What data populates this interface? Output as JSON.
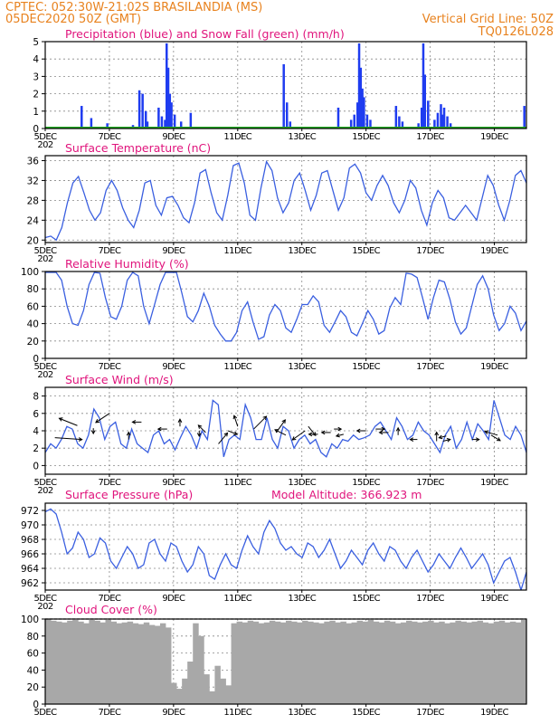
{
  "header": {
    "line1": "CPTEC:   052:30W-21:02S   BRASILANDIA (MS)",
    "line2": "05DEC2020 50Z (GMT)",
    "grid_note": "Vertical Grid Line: 50Z",
    "code": "TQ0126L028"
  },
  "x_axis": {
    "ticks": [
      "5DEC",
      "7DEC",
      "9DEC",
      "11DEC",
      "13DEC",
      "15DEC",
      "17DEC",
      "19DEC"
    ],
    "tick_days": [
      0,
      2,
      4,
      6,
      8,
      10,
      12,
      14
    ],
    "range_days": [
      0,
      15
    ],
    "cut_label": "202"
  },
  "colors": {
    "line": "#3a5fe0",
    "bar": "#1f3cf0",
    "snow": "#22aa22",
    "cloud": "#a8a8a8",
    "header": "#e8821e",
    "title": "#e0147c"
  },
  "chart_data": [
    {
      "id": "precip",
      "type": "bar",
      "title": "Precipitation (blue) and Snow Fall (green) (mm/h)",
      "ylim": [
        0,
        5
      ],
      "yticks": [
        0,
        1,
        2,
        3,
        4,
        5
      ],
      "bars": [
        [
          1.1,
          1.3
        ],
        [
          1.4,
          0.6
        ],
        [
          1.9,
          0.3
        ],
        [
          2.7,
          0.2
        ],
        [
          2.9,
          2.2
        ],
        [
          3.0,
          2.0
        ],
        [
          3.1,
          1.0
        ],
        [
          3.15,
          0.4
        ],
        [
          3.5,
          1.2
        ],
        [
          3.6,
          0.7
        ],
        [
          3.7,
          0.5
        ],
        [
          3.75,
          4.9
        ],
        [
          3.8,
          3.5
        ],
        [
          3.85,
          2.0
        ],
        [
          3.9,
          1.5
        ],
        [
          4.0,
          0.8
        ],
        [
          4.2,
          0.4
        ],
        [
          4.5,
          0.9
        ],
        [
          7.4,
          3.7
        ],
        [
          7.5,
          1.5
        ],
        [
          7.6,
          0.4
        ],
        [
          9.1,
          1.2
        ],
        [
          9.5,
          0.5
        ],
        [
          9.6,
          0.8
        ],
        [
          9.7,
          1.5
        ],
        [
          9.75,
          4.9
        ],
        [
          9.8,
          3.5
        ],
        [
          9.85,
          2.3
        ],
        [
          9.9,
          1.8
        ],
        [
          10.0,
          0.8
        ],
        [
          10.1,
          0.5
        ],
        [
          10.9,
          1.3
        ],
        [
          11.0,
          0.7
        ],
        [
          11.1,
          0.4
        ],
        [
          11.6,
          0.3
        ],
        [
          11.7,
          1.2
        ],
        [
          11.75,
          4.9
        ],
        [
          11.8,
          3.1
        ],
        [
          11.9,
          1.6
        ],
        [
          12.1,
          0.5
        ],
        [
          12.2,
          0.9
        ],
        [
          12.3,
          1.4
        ],
        [
          12.35,
          0.8
        ],
        [
          12.4,
          1.2
        ],
        [
          12.5,
          0.7
        ],
        [
          12.6,
          0.3
        ],
        [
          14.9,
          1.3
        ]
      ]
    },
    {
      "id": "temp",
      "type": "line",
      "title": "Surface Temperature (nC)",
      "ylim": [
        19.5,
        37
      ],
      "yticks": [
        20,
        24,
        28,
        32,
        36
      ],
      "values": [
        20.5,
        20.8,
        20.0,
        22.5,
        27.5,
        31.5,
        32.8,
        29.5,
        26.0,
        24.0,
        25.5,
        30.0,
        32.0,
        30.0,
        26.5,
        24.0,
        22.5,
        26.0,
        31.5,
        32.0,
        27.0,
        25.0,
        28.5,
        28.8,
        27.0,
        24.5,
        23.5,
        27.5,
        33.5,
        34.2,
        29.5,
        25.5,
        24.0,
        29.0,
        35.0,
        35.5,
        31.5,
        25.0,
        24.0,
        30.5,
        35.8,
        34.0,
        28.5,
        25.5,
        27.5,
        32.0,
        33.5,
        30.0,
        26.0,
        29.0,
        33.5,
        34.0,
        30.0,
        26.0,
        28.5,
        34.5,
        35.3,
        33.5,
        29.5,
        28.0,
        31.0,
        33.0,
        31.0,
        27.5,
        25.5,
        28.0,
        32.0,
        30.5,
        26.0,
        23.0,
        27.5,
        30.0,
        28.5,
        24.5,
        24.0,
        25.5,
        27.0,
        25.5,
        24.0,
        28.5,
        33.0,
        31.0,
        27.0,
        24.0,
        28.0,
        33.0,
        34.0,
        31.5
      ]
    },
    {
      "id": "rh",
      "type": "line",
      "title": "Relative Humidity (%)",
      "ylim": [
        0,
        100
      ],
      "yticks": [
        0,
        20,
        40,
        60,
        80,
        100
      ],
      "values": [
        99,
        99,
        99,
        90,
        60,
        40,
        38,
        55,
        85,
        99,
        98,
        70,
        48,
        45,
        60,
        90,
        99,
        95,
        60,
        40,
        62,
        85,
        99,
        99,
        99,
        75,
        48,
        42,
        55,
        75,
        60,
        38,
        28,
        20,
        20,
        30,
        55,
        65,
        42,
        22,
        25,
        50,
        62,
        55,
        35,
        30,
        45,
        62,
        62,
        72,
        65,
        38,
        30,
        42,
        55,
        48,
        30,
        26,
        40,
        55,
        45,
        28,
        32,
        58,
        70,
        62,
        98,
        97,
        93,
        70,
        45,
        70,
        90,
        88,
        68,
        42,
        28,
        35,
        60,
        85,
        95,
        80,
        50,
        32,
        40,
        60,
        52,
        32,
        43
      ]
    },
    {
      "id": "wind",
      "type": "line",
      "title": "Surface Wind (m/s)",
      "ylim": [
        -1,
        9
      ],
      "yticks": [
        0,
        2,
        4,
        6,
        8
      ],
      "values": [
        1.5,
        2.5,
        2.0,
        3.0,
        4.5,
        4.2,
        2.5,
        2.0,
        3.5,
        6.5,
        5.5,
        3.0,
        4.5,
        5.0,
        2.5,
        2.0,
        4.2,
        2.5,
        2.0,
        1.5,
        3.5,
        4.0,
        2.5,
        3.0,
        1.8,
        3.2,
        4.5,
        3.5,
        2.0,
        4.0,
        3.0,
        7.5,
        7.0,
        1.0,
        3.0,
        3.5,
        3.0,
        7.0,
        5.5,
        3.0,
        3.0,
        5.5,
        3.0,
        2.0,
        4.5,
        4.0,
        2.0,
        3.0,
        3.5,
        2.5,
        3.0,
        1.5,
        1.0,
        2.5,
        2.0,
        3.0,
        2.8,
        3.5,
        3.0,
        3.2,
        3.5,
        4.5,
        5.0,
        4.0,
        3.0,
        5.5,
        4.5,
        3.0,
        3.5,
        5.0,
        4.0,
        3.5,
        2.5,
        1.5,
        3.5,
        4.5,
        2.0,
        3.0,
        5.0,
        3.0,
        4.8,
        4.0,
        3.0,
        7.5,
        5.5,
        3.5,
        3.0,
        4.5,
        3.5,
        1.5
      ],
      "vectors": [
        [
          0.3,
          3.2,
          30,
          2
        ],
        [
          1.0,
          4.6,
          -20,
          -8
        ],
        [
          1.5,
          4.3,
          0,
          6
        ],
        [
          2.0,
          6.0,
          -15,
          10
        ],
        [
          2.6,
          3.0,
          0,
          -8
        ],
        [
          3.0,
          5.0,
          -10,
          0
        ],
        [
          3.8,
          4.2,
          -10,
          0
        ],
        [
          4.2,
          4.5,
          0,
          -8
        ],
        [
          4.8,
          4.0,
          0,
          6
        ],
        [
          5.0,
          3.8,
          -8,
          -8
        ],
        [
          5.4,
          2.5,
          10,
          -12
        ],
        [
          5.7,
          4.0,
          10,
          4
        ],
        [
          6.0,
          4.5,
          -4,
          -12
        ],
        [
          6.5,
          4.2,
          14,
          -14
        ],
        [
          7.2,
          3.8,
          10,
          -14
        ],
        [
          7.5,
          3.5,
          -12,
          -6
        ],
        [
          8.1,
          4.0,
          -14,
          10
        ],
        [
          8.2,
          4.5,
          8,
          10
        ],
        [
          8.5,
          3.6,
          -10,
          0
        ],
        [
          8.9,
          3.8,
          -10,
          0
        ],
        [
          9.0,
          4.2,
          8,
          0
        ],
        [
          9.3,
          3.6,
          -8,
          2
        ],
        [
          10.0,
          4.0,
          -10,
          0
        ],
        [
          10.3,
          4.2,
          10,
          0
        ],
        [
          10.7,
          3.8,
          -10,
          0
        ],
        [
          11.0,
          3.5,
          0,
          -8
        ],
        [
          11.6,
          3.0,
          -8,
          0
        ],
        [
          12.2,
          2.8,
          0,
          -10
        ],
        [
          12.4,
          2.8,
          8,
          -2
        ],
        [
          12.5,
          3.4,
          -8,
          2
        ],
        [
          13.3,
          3.0,
          8,
          0
        ],
        [
          13.9,
          3.5,
          10,
          6
        ],
        [
          14.1,
          3.5,
          -14,
          -4
        ]
      ]
    },
    {
      "id": "pressure",
      "type": "line",
      "title": "Surface Pressure (hPa)",
      "note": "Model Altitude: 366.923 m",
      "ylim": [
        961,
        973
      ],
      "yticks": [
        962,
        964,
        966,
        968,
        970,
        972
      ],
      "values": [
        971.8,
        972.2,
        971.5,
        969.0,
        966.0,
        966.8,
        969.0,
        968.0,
        965.5,
        966.0,
        968.2,
        967.5,
        965.0,
        964.0,
        965.5,
        967.0,
        966.0,
        964.0,
        964.5,
        967.5,
        968.0,
        966.0,
        965.0,
        967.5,
        967.0,
        965.0,
        963.5,
        964.5,
        967.0,
        966.0,
        963.0,
        962.5,
        964.5,
        966.0,
        964.5,
        964.0,
        966.5,
        968.5,
        967.0,
        966.0,
        969.0,
        970.6,
        969.5,
        967.5,
        966.5,
        967.0,
        966.0,
        965.5,
        967.5,
        967.0,
        965.5,
        966.5,
        968.0,
        966.0,
        964.0,
        965.0,
        966.5,
        965.5,
        964.5,
        966.5,
        967.5,
        966.0,
        965.0,
        967.0,
        966.5,
        965.0,
        964.0,
        965.5,
        966.5,
        965.0,
        963.5,
        964.5,
        966.0,
        965.0,
        964.0,
        965.5,
        966.8,
        965.5,
        964.0,
        965.0,
        966.0,
        964.5,
        962.0,
        963.5,
        965.0,
        965.5,
        963.5,
        961.0,
        963.5
      ]
    },
    {
      "id": "cloud",
      "type": "area",
      "title": "Cloud Cover (%)",
      "ylim": [
        0,
        100
      ],
      "yticks": [
        0,
        20,
        40,
        60,
        80,
        100
      ],
      "values": [
        100,
        98,
        97,
        96,
        98,
        99,
        97,
        95,
        99,
        98,
        96,
        99,
        97,
        95,
        96,
        97,
        95,
        94,
        96,
        93,
        92,
        95,
        90,
        25,
        18,
        30,
        50,
        95,
        80,
        35,
        15,
        45,
        30,
        22,
        95,
        97,
        96,
        98,
        97,
        95,
        96,
        98,
        97,
        96,
        98,
        97,
        96,
        98,
        97,
        96,
        95,
        97,
        98,
        96,
        97,
        95,
        96,
        98,
        97,
        99,
        97,
        96,
        98,
        97,
        95,
        96,
        98,
        97,
        96,
        97,
        98,
        96,
        97,
        95,
        96,
        98,
        97,
        96,
        97,
        98,
        96,
        95,
        97,
        98,
        96,
        97,
        96,
        99
      ]
    }
  ]
}
